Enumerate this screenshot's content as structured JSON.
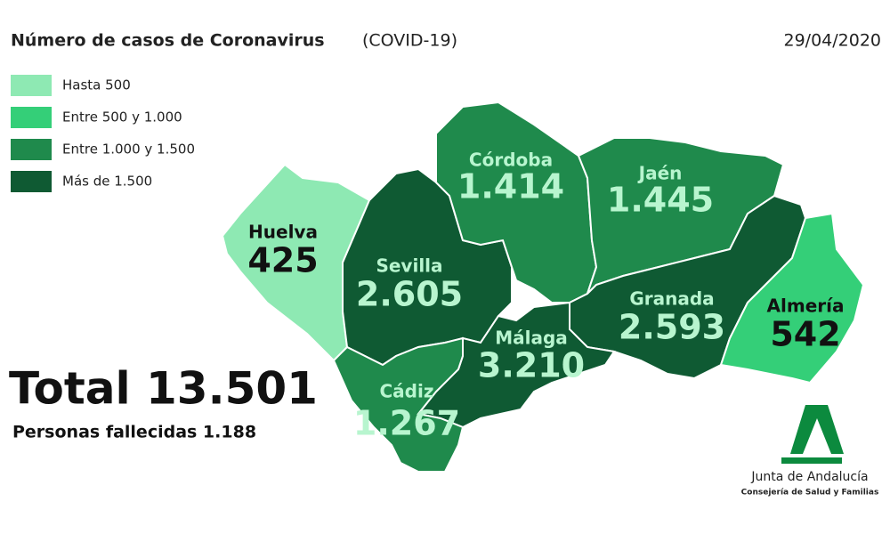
{
  "header": {
    "title": "Número de casos de Coronavirus",
    "subtitle": "(COVID-19)",
    "date": "29/04/2020"
  },
  "legend": [
    {
      "label": "Hasta 500",
      "color": "#8ee9b3"
    },
    {
      "label": "Entre 500 y 1.000",
      "color": "#34cf78"
    },
    {
      "label": "Entre 1.000 y 1.500",
      "color": "#1f8a4c"
    },
    {
      "label": "Más de 1.500",
      "color": "#0f5a33"
    }
  ],
  "provinces": [
    {
      "name": "Huelva",
      "cases": "425",
      "class": 0
    },
    {
      "name": "Sevilla",
      "cases": "2.605",
      "class": 3
    },
    {
      "name": "Córdoba",
      "cases": "1.414",
      "class": 2
    },
    {
      "name": "Jaén",
      "cases": "1.445",
      "class": 2
    },
    {
      "name": "Granada",
      "cases": "2.593",
      "class": 3
    },
    {
      "name": "Almería",
      "cases": "542",
      "class": 1
    },
    {
      "name": "Málaga",
      "cases": "3.210",
      "class": 3
    },
    {
      "name": "Cádiz",
      "cases": "1.267",
      "class": 2
    }
  ],
  "summary": {
    "total": "Total 13.501",
    "deaths": "Personas fallecidas 1.188"
  },
  "logo": {
    "name": "Junta de Andalucía",
    "department": "Consejería de Salud y Familias"
  }
}
